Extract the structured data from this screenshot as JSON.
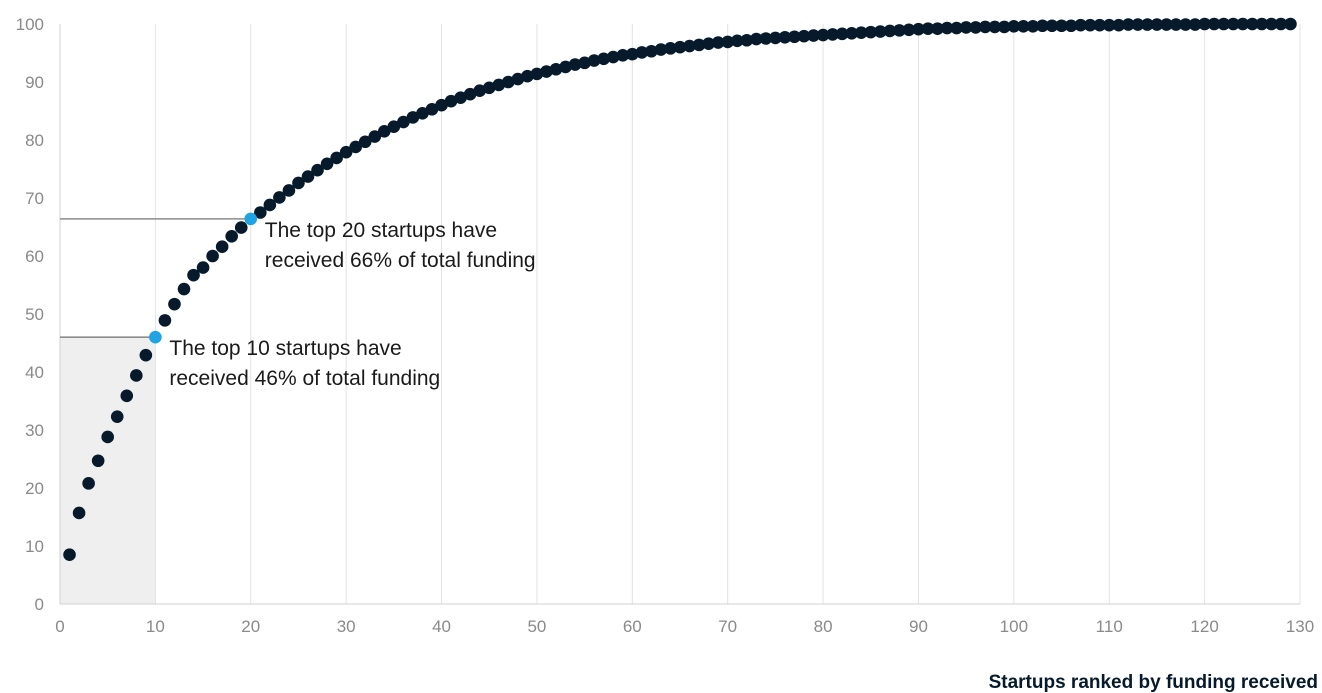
{
  "chart_data": {
    "type": "scatter",
    "title": "",
    "xlabel": "Startups ranked by funding received",
    "ylabel": "",
    "xlim": [
      0,
      130
    ],
    "ylim": [
      0,
      100
    ],
    "x_ticks": [
      "0",
      "10",
      "20",
      "30",
      "40",
      "50",
      "60",
      "70",
      "80",
      "90",
      "100",
      "110",
      "120",
      "130"
    ],
    "y_ticks": [
      "0",
      "10",
      "20",
      "30",
      "40",
      "50",
      "60",
      "70",
      "80",
      "90",
      "100"
    ],
    "grid": "vertical",
    "shaded_region": {
      "x": [
        0,
        10
      ],
      "y": [
        0,
        46
      ]
    },
    "colors": {
      "points": "#061a2c",
      "highlight": "#1fa3e3",
      "grid": "#e3e3e3",
      "shade": "#efefef",
      "reference_line": "#8c8c8c"
    },
    "series": [
      {
        "x": [
          1,
          2,
          3,
          4,
          5,
          6,
          7,
          8,
          9,
          10,
          11,
          12,
          13,
          14,
          15,
          16,
          17,
          18,
          19,
          20,
          21,
          22,
          23,
          24,
          25,
          26,
          27,
          28,
          29,
          30,
          31,
          32,
          33,
          34,
          35,
          36,
          37,
          38,
          39,
          40,
          41,
          42,
          43,
          44,
          45,
          46,
          47,
          48,
          49,
          50,
          51,
          52,
          53,
          54,
          55,
          56,
          57,
          58,
          59,
          60,
          61,
          62,
          63,
          64,
          65,
          66,
          67,
          68,
          69,
          70,
          71,
          72,
          73,
          74,
          75,
          76,
          77,
          78,
          79,
          80,
          81,
          82,
          83,
          84,
          85,
          86,
          87,
          88,
          89,
          90,
          91,
          92,
          93,
          94,
          95,
          96,
          97,
          98,
          99,
          100,
          101,
          102,
          103,
          104,
          105,
          106,
          107,
          108,
          109,
          110,
          111,
          112,
          113,
          114,
          115,
          116,
          117,
          118,
          119,
          120,
          121,
          122,
          123,
          124,
          125,
          126,
          127,
          128,
          129
        ],
        "values": [
          8.5,
          15.7,
          20.8,
          24.7,
          28.8,
          32.3,
          35.9,
          39.4,
          42.9,
          46.0,
          48.9,
          51.7,
          54.3,
          56.7,
          58.0,
          60.0,
          61.6,
          63.4,
          64.9,
          66.4,
          67.5,
          68.8,
          70.1,
          71.3,
          72.6,
          73.7,
          74.8,
          75.9,
          76.9,
          77.9,
          78.8,
          79.7,
          80.6,
          81.5,
          82.3,
          83.1,
          83.9,
          84.6,
          85.3,
          86.0,
          86.7,
          87.3,
          87.9,
          88.5,
          89.0,
          89.5,
          90.0,
          90.5,
          91.0,
          91.4,
          91.8,
          92.2,
          92.6,
          93.0,
          93.3,
          93.7,
          94.0,
          94.3,
          94.6,
          94.8,
          95.1,
          95.3,
          95.6,
          95.8,
          96.0,
          96.2,
          96.4,
          96.6,
          96.8,
          96.9,
          97.1,
          97.2,
          97.4,
          97.5,
          97.6,
          97.7,
          97.8,
          97.9,
          98.0,
          98.1,
          98.2,
          98.3,
          98.4,
          98.5,
          98.6,
          98.7,
          98.8,
          98.9,
          99.0,
          99.1,
          99.2,
          99.2,
          99.3,
          99.3,
          99.4,
          99.4,
          99.5,
          99.5,
          99.5,
          99.6,
          99.6,
          99.6,
          99.7,
          99.7,
          99.7,
          99.7,
          99.8,
          99.8,
          99.8,
          99.8,
          99.8,
          99.9,
          99.9,
          99.9,
          99.9,
          99.9,
          99.9,
          99.9,
          99.9,
          100.0,
          100.0,
          100.0,
          100.0,
          100.0,
          100.0,
          100.0,
          100.0,
          100.0,
          100.0
        ]
      }
    ],
    "highlights": [
      {
        "x": 10,
        "y": 46,
        "label_lines": [
          "The top 10 startups have",
          "received 46% of total funding"
        ]
      },
      {
        "x": 20,
        "y": 66.4,
        "label_lines": [
          "The top 20 startups have",
          "received 66% of total funding"
        ]
      }
    ]
  }
}
